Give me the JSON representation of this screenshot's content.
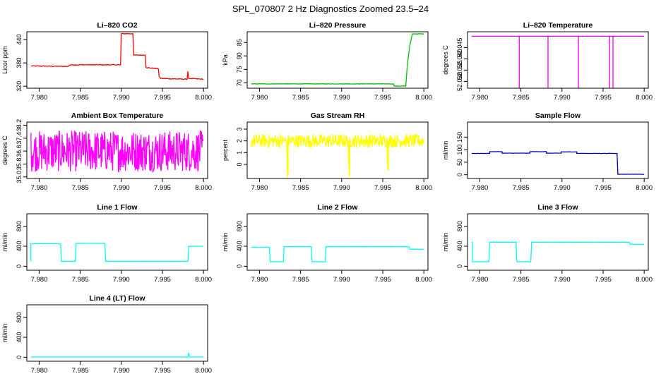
{
  "figure": {
    "title": "SPL_070807  2 Hz Diagnostics Zoomed 23.5–24"
  },
  "chart_data": [
    {
      "type": "line",
      "id": "li820-co2",
      "title": "Li–820 CO2",
      "ylabel": "Licor ppm",
      "color": "#ff0000",
      "xlim": [
        7.9785,
        8.0005
      ],
      "ylim": [
        315,
        460
      ],
      "xticks": [
        7.98,
        7.985,
        7.99,
        7.995,
        8.0
      ],
      "xtick_labels": [
        "7.980",
        "7.985",
        "7.990",
        "7.995",
        "8.000"
      ],
      "yticks": [
        320,
        380,
        440
      ],
      "ytick_labels": [
        "320",
        "380",
        "440"
      ],
      "series": [
        {
          "name": "CO2",
          "x": [
            7.979,
            7.9835,
            7.9838,
            7.9899,
            7.99,
            7.9914,
            7.9915,
            7.9929,
            7.993,
            7.9945,
            7.9946,
            7.9948,
            7.998,
            7.9981,
            7.9982,
            8.0
          ],
          "y": [
            372,
            371,
            375,
            375,
            455,
            455,
            400,
            400,
            368,
            365,
            345,
            340,
            338,
            358,
            340,
            338
          ]
        }
      ],
      "noise": 2
    },
    {
      "type": "line",
      "id": "li820-pressure",
      "title": "Li–820 Pressure",
      "ylabel": "kPa",
      "color": "#00c000",
      "xlim": [
        7.9785,
        8.0005
      ],
      "ylim": [
        68,
        89
      ],
      "xticks": [
        7.98,
        7.985,
        7.99,
        7.995,
        8.0
      ],
      "xtick_labels": [
        "7.980",
        "7.985",
        "7.990",
        "7.995",
        "8.000"
      ],
      "yticks": [
        70,
        75,
        80,
        85
      ],
      "ytick_labels": [
        "70",
        "75",
        "80",
        "85"
      ],
      "series": [
        {
          "name": "Pressure",
          "x": [
            7.979,
            7.9963,
            7.9964,
            7.9978,
            7.998,
            7.9983,
            7.9986,
            8.0
          ],
          "y": [
            69.6,
            69.6,
            68.8,
            68.8,
            77,
            84,
            88.2,
            88.2
          ]
        }
      ],
      "noise": 0.15
    },
    {
      "type": "line",
      "id": "li820-temperature",
      "title": "Li–820 Temperature",
      "ylabel": "degrees C",
      "color": "#ff00ff",
      "xlim": [
        7.9785,
        8.0005
      ],
      "ylim": [
        52.027,
        52.052
      ],
      "xticks": [
        7.98,
        7.985,
        7.99,
        7.995,
        8.0
      ],
      "xtick_labels": [
        "7.980",
        "7.985",
        "7.990",
        "7.995",
        "8.000"
      ],
      "yticks": [
        52.03,
        52.035,
        52.04,
        52.045
      ],
      "ytick_labels": [
        "52.030",
        "52.035",
        "52.040",
        "52.045"
      ],
      "series": [
        {
          "name": "Temperature",
          "x": [
            7.979,
            7.9848,
            7.9848,
            7.9848,
            7.9883,
            7.9883,
            7.9883,
            7.992,
            7.992,
            7.992,
            7.9958,
            7.9958,
            7.9958,
            7.9962,
            7.9962,
            7.9962,
            8.0
          ],
          "y": [
            52.05,
            52.05,
            52.027,
            52.05,
            52.05,
            52.027,
            52.05,
            52.05,
            52.027,
            52.05,
            52.05,
            52.027,
            52.05,
            52.05,
            52.027,
            52.05,
            52.05
          ]
        }
      ],
      "noise": 0
    },
    {
      "type": "line",
      "id": "ambient-box-temperature",
      "title": "Ambient Box Temperature",
      "ylabel": "degrees C",
      "color": "#ff00ff",
      "xlim": [
        7.9785,
        8.0005
      ],
      "ylim": [
        34.9,
        38.4
      ],
      "xticks": [
        7.98,
        7.985,
        7.99,
        7.995,
        8.0
      ],
      "xtick_labels": [
        "7.980",
        "7.985",
        "7.990",
        "7.995",
        "8.000"
      ],
      "yticks": [
        35.0,
        35.8,
        36.6,
        37.4,
        38.2
      ],
      "ytick_labels": [
        "35.0",
        "35.8",
        "36.6",
        "37.4",
        "38.2"
      ],
      "series": [
        {
          "name": "Ambient",
          "x": [
            7.979,
            8.0
          ],
          "y": [
            36.6,
            36.6
          ]
        }
      ],
      "noise": 1.6,
      "dense": true
    },
    {
      "type": "line",
      "id": "gas-stream-rh",
      "title": "Gas Stream RH",
      "ylabel": "percent",
      "color": "#ffff00",
      "xlim": [
        7.9785,
        8.0005
      ],
      "ylim": [
        -1.2,
        3.6
      ],
      "xticks": [
        7.98,
        7.985,
        7.99,
        7.995,
        8.0
      ],
      "xtick_labels": [
        "7.980",
        "7.985",
        "7.990",
        "7.995",
        "8.000"
      ],
      "yticks": [
        0,
        1,
        2,
        3
      ],
      "ytick_labels": [
        "0",
        "1",
        "2",
        "3"
      ],
      "series": [
        {
          "name": "RH",
          "x": [
            7.979,
            7.9833,
            7.9834,
            7.9835,
            7.9908,
            7.9909,
            7.991,
            7.9955,
            7.9956,
            7.9957,
            8.0
          ],
          "y": [
            2.0,
            2.0,
            -0.9,
            2.0,
            2.0,
            -1.0,
            2.0,
            2.0,
            -0.5,
            2.0,
            2.0
          ]
        }
      ],
      "noise": 0.7,
      "dense": true
    },
    {
      "type": "line",
      "id": "sample-flow",
      "title": "Sample Flow",
      "ylabel": "ml/min",
      "color": "#0000c0",
      "xlim": [
        7.9785,
        8.0005
      ],
      "ylim": [
        -15,
        210
      ],
      "xticks": [
        7.98,
        7.985,
        7.99,
        7.995,
        8.0
      ],
      "xtick_labels": [
        "7.980",
        "7.985",
        "7.990",
        "7.995",
        "8.000"
      ],
      "yticks": [
        0,
        50,
        100,
        150
      ],
      "ytick_labels": [
        "0",
        "50",
        "100",
        "150"
      ],
      "series": [
        {
          "name": "Sample",
          "x": [
            7.979,
            7.9812,
            7.9812,
            7.9827,
            7.9827,
            7.9861,
            7.9861,
            7.9881,
            7.9881,
            7.9899,
            7.9899,
            7.9918,
            7.9918,
            7.9967,
            7.9968,
            8.0
          ],
          "y": [
            85,
            85,
            92,
            92,
            86,
            86,
            92,
            92,
            86,
            86,
            91,
            91,
            85,
            85,
            2,
            2
          ]
        }
      ],
      "noise": 1
    },
    {
      "type": "line",
      "id": "line-1-flow",
      "title": "Line 1 Flow",
      "ylabel": "ml/min",
      "color": "#00ffff",
      "xlim": [
        7.9785,
        8.0005
      ],
      "ylim": [
        -80,
        1050
      ],
      "xticks": [
        7.98,
        7.985,
        7.99,
        7.995,
        8.0
      ],
      "xtick_labels": [
        "7.980",
        "7.985",
        "7.990",
        "7.995",
        "8.000"
      ],
      "yticks": [
        0,
        400,
        800
      ],
      "ytick_labels": [
        "0",
        "400",
        "800"
      ],
      "series": [
        {
          "name": "Line1",
          "x": [
            7.979,
            7.979,
            7.9826,
            7.9827,
            7.9844,
            7.9845,
            7.988,
            7.9881,
            7.9981,
            7.9982,
            8.0
          ],
          "y": [
            100,
            450,
            450,
            100,
            100,
            460,
            460,
            100,
            100,
            400,
            400
          ]
        }
      ],
      "noise": 6
    },
    {
      "type": "line",
      "id": "line-2-flow",
      "title": "Line 2 Flow",
      "ylabel": "ml/min",
      "color": "#00ffff",
      "xlim": [
        7.9785,
        8.0005
      ],
      "ylim": [
        -80,
        1050
      ],
      "xticks": [
        7.98,
        7.985,
        7.99,
        7.995,
        8.0
      ],
      "xtick_labels": [
        "7.980",
        "7.985",
        "7.990",
        "7.995",
        "8.000"
      ],
      "yticks": [
        0,
        400,
        800
      ],
      "ytick_labels": [
        "0",
        "400",
        "800"
      ],
      "series": [
        {
          "name": "Line2",
          "x": [
            7.979,
            7.9812,
            7.9813,
            7.9829,
            7.983,
            7.9863,
            7.9864,
            7.988,
            7.9881,
            7.9982,
            7.9983,
            8.0
          ],
          "y": [
            380,
            380,
            90,
            90,
            390,
            390,
            90,
            90,
            390,
            390,
            340,
            340
          ]
        }
      ],
      "noise": 6
    },
    {
      "type": "line",
      "id": "line-3-flow",
      "title": "Line 3 Flow",
      "ylabel": "ml/min",
      "color": "#00ffff",
      "xlim": [
        7.9785,
        8.0005
      ],
      "ylim": [
        -80,
        1050
      ],
      "xticks": [
        7.98,
        7.985,
        7.99,
        7.995,
        8.0
      ],
      "xtick_labels": [
        "7.980",
        "7.985",
        "7.990",
        "7.995",
        "8.000"
      ],
      "yticks": [
        0,
        400,
        800
      ],
      "ytick_labels": [
        "0",
        "400",
        "800"
      ],
      "series": [
        {
          "name": "Line3",
          "x": [
            7.979,
            7.9791,
            7.9791,
            7.9811,
            7.9812,
            7.9844,
            7.9845,
            7.9862,
            7.9863,
            7.9982,
            7.9983,
            8.0
          ],
          "y": [
            480,
            480,
            90,
            90,
            480,
            480,
            90,
            90,
            480,
            480,
            440,
            440
          ]
        }
      ],
      "noise": 6
    },
    {
      "type": "line",
      "id": "line-4-lt-flow",
      "title": "Line 4 (LT) Flow",
      "ylabel": "ml/min",
      "color": "#00ffff",
      "xlim": [
        7.9785,
        8.0005
      ],
      "ylim": [
        -80,
        1050
      ],
      "xticks": [
        7.98,
        7.985,
        7.99,
        7.995,
        8.0
      ],
      "xtick_labels": [
        "7.980",
        "7.985",
        "7.990",
        "7.995",
        "8.000"
      ],
      "yticks": [
        0,
        400,
        800
      ],
      "ytick_labels": [
        "0",
        "400",
        "800"
      ],
      "series": [
        {
          "name": "Line4",
          "x": [
            7.979,
            7.9981,
            7.9982,
            7.9983,
            8.0
          ],
          "y": [
            5,
            5,
            90,
            5,
            5
          ]
        }
      ],
      "noise": 1
    }
  ]
}
